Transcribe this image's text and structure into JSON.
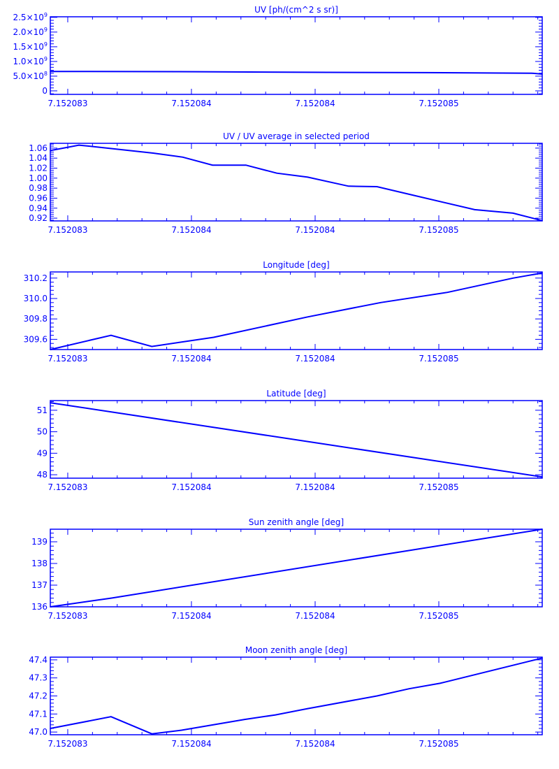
{
  "color": "#0000ff",
  "x_tick_labels": [
    "7.152083",
    "7.152084",
    "7.152084",
    "7.152085"
  ],
  "chart_data": [
    {
      "type": "line",
      "title": "UV [ph/(cm^2 s sr)]",
      "ylim": [
        -120000000.0,
        2520000000.0
      ],
      "yticks": [
        {
          "v": 0,
          "label": "0"
        },
        {
          "v": 500000000.0,
          "label": "5.0×10",
          "exp": "8"
        },
        {
          "v": 1000000000.0,
          "label": "1.0×10",
          "exp": "9"
        },
        {
          "v": 1500000000.0,
          "label": "1.5×10",
          "exp": "9"
        },
        {
          "v": 2000000000.0,
          "label": "2.0×10",
          "exp": "9"
        },
        {
          "v": 2500000000.0,
          "label": "2.5×10",
          "exp": "9"
        }
      ],
      "x": [
        -0.141,
        1.06,
        2.1,
        2.9,
        3.75,
        3.836
      ],
      "y": [
        660000000.0,
        650000000.0,
        630000000.0,
        620000000.0,
        600000000.0,
        570000000.0
      ]
    },
    {
      "type": "line",
      "title": "UV / UV average in selected period",
      "ylim": [
        0.9145,
        1.0696
      ],
      "yticks": [
        {
          "v": 0.92,
          "label": "0.92"
        },
        {
          "v": 0.94,
          "label": "0.94"
        },
        {
          "v": 0.96,
          "label": "0.96"
        },
        {
          "v": 0.98,
          "label": "0.98"
        },
        {
          "v": 1.0,
          "label": "1.00"
        },
        {
          "v": 1.02,
          "label": "1.02"
        },
        {
          "v": 1.04,
          "label": "1.04"
        },
        {
          "v": 1.06,
          "label": "1.06"
        }
      ],
      "x": [
        -0.141,
        0.09,
        0.17,
        0.69,
        0.93,
        1.17,
        1.44,
        1.69,
        1.94,
        2.27,
        2.5,
        2.79,
        3.29,
        3.6,
        3.836
      ],
      "y": [
        1.055,
        1.066,
        1.064,
        1.05,
        1.042,
        1.026,
        1.026,
        1.01,
        1.002,
        0.984,
        0.983,
        0.966,
        0.937,
        0.93,
        0.915
      ]
    },
    {
      "type": "line",
      "title": "Longitude [deg]",
      "ylim": [
        309.5,
        310.26
      ],
      "yticks": [
        {
          "v": 309.6,
          "label": "309.6"
        },
        {
          "v": 309.8,
          "label": "309.8"
        },
        {
          "v": 310.0,
          "label": "310.0"
        },
        {
          "v": 310.2,
          "label": "310.2"
        }
      ],
      "x": [
        -0.141,
        0.35,
        0.68,
        1.18,
        1.94,
        2.53,
        3.07,
        3.6,
        3.836
      ],
      "y": [
        309.5,
        309.64,
        309.53,
        309.62,
        309.82,
        309.96,
        310.06,
        310.2,
        310.25
      ]
    },
    {
      "type": "line",
      "title": "Latitude [deg]",
      "ylim": [
        47.84,
        51.45
      ],
      "yticks": [
        {
          "v": 48,
          "label": "48"
        },
        {
          "v": 49,
          "label": "49"
        },
        {
          "v": 50,
          "label": "50"
        },
        {
          "v": 51,
          "label": "51"
        }
      ],
      "x": [
        -0.141,
        3.836
      ],
      "y": [
        51.35,
        47.9
      ]
    },
    {
      "type": "line",
      "title": "Sun zenith angle [deg]",
      "ylim": [
        136,
        139.58
      ],
      "yticks": [
        {
          "v": 136,
          "label": "136"
        },
        {
          "v": 137,
          "label": "137"
        },
        {
          "v": 138,
          "label": "138"
        },
        {
          "v": 139,
          "label": "139"
        }
      ],
      "x": [
        -0.141,
        0.35,
        3.836
      ],
      "y": [
        136.0,
        136.4,
        139.58
      ]
    },
    {
      "type": "line",
      "title": "Moon zenith angle [deg]",
      "ylim": [
        46.985,
        47.415
      ],
      "yticks": [
        {
          "v": 47.0,
          "label": "47.0"
        },
        {
          "v": 47.1,
          "label": "47.1"
        },
        {
          "v": 47.2,
          "label": "47.2"
        },
        {
          "v": 47.3,
          "label": "47.3"
        },
        {
          "v": 47.4,
          "label": "47.4"
        }
      ],
      "x": [
        -0.141,
        0.35,
        0.68,
        0.92,
        1.43,
        1.68,
        1.94,
        2.5,
        2.76,
        3.01,
        3.836
      ],
      "y": [
        47.02,
        47.085,
        46.99,
        47.01,
        47.07,
        47.095,
        47.13,
        47.2,
        47.24,
        47.27,
        47.41
      ]
    }
  ]
}
